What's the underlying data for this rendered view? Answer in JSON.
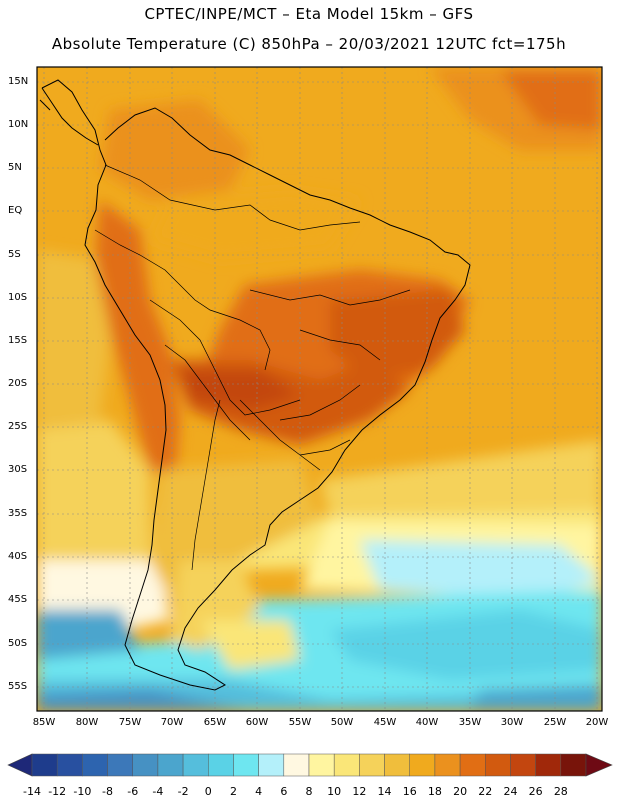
{
  "header": {
    "line1": "CPTEC/INPE/MCT –  Eta Model 15km – GFS",
    "line2": "Absolute Temperature (C) 850hPa – 20/03/2021 12UTC fct=175h"
  },
  "axes": {
    "lat_labels": [
      "15N",
      "10N",
      "5N",
      "EQ",
      "5S",
      "10S",
      "15S",
      "20S",
      "25S",
      "30S",
      "35S",
      "40S",
      "45S",
      "50S",
      "55S"
    ],
    "lon_labels": [
      "85W",
      "80W",
      "75W",
      "70W",
      "65W",
      "60W",
      "55W",
      "50W",
      "45W",
      "40W",
      "35W",
      "30W",
      "25W",
      "20W"
    ]
  },
  "colorbar": {
    "labels": [
      "-14",
      "-12",
      "-10",
      "-8",
      "-6",
      "-4",
      "-2",
      "0",
      "2",
      "4",
      "6",
      "8",
      "10",
      "12",
      "14",
      "16",
      "18",
      "20",
      "22",
      "24",
      "26",
      "28"
    ],
    "colors": [
      "#1e3c8c",
      "#2850a0",
      "#2d64af",
      "#3c78b9",
      "#4691c3",
      "#4ba5cd",
      "#55bedc",
      "#5ad2e6",
      "#6ee6f0",
      "#b4f0fa",
      "#fff8e1",
      "#fff5a0",
      "#fae678",
      "#f5d25a",
      "#f0be3c",
      "#f0aa1e",
      "#eb911e",
      "#e16e14",
      "#d25a0f",
      "#c3460f",
      "#a0280a",
      "#78140a"
    ],
    "under_color": "#1e2878",
    "over_color": "#6e0a14"
  }
}
